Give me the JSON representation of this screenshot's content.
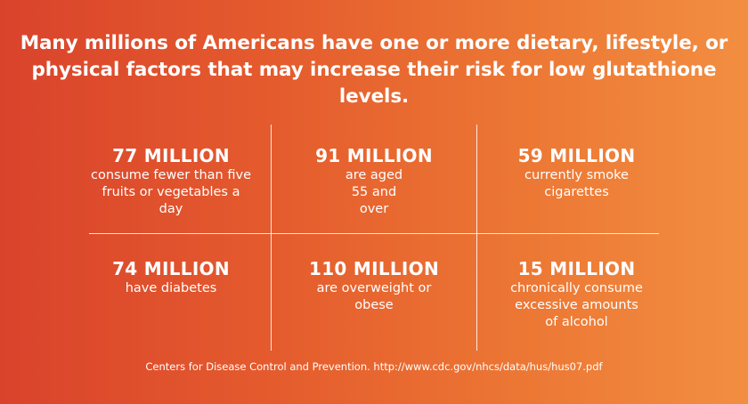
{
  "headline": "Many millions of Americans have one or more dietary, lifestyle, or physical factors that may increase their risk for low glutathione levels.",
  "stats": [
    {
      "value": "77 MILLION",
      "description": "consume fewer than five fruits or vegetables a day"
    },
    {
      "value": "91 MILLION",
      "description": "are aged 55 and over"
    },
    {
      "value": "59 MILLION",
      "description": "currently smoke cigarettes"
    },
    {
      "value": "74 MILLION",
      "description": "have diabetes"
    },
    {
      "value": "110 MILLION",
      "description": "are overweight or obese"
    },
    {
      "value": "15 MILLION",
      "description": "chronically consume excessive amounts of alcohol"
    }
  ],
  "source": "Centers for Disease Control and Prevention. http://www.cdc.gov/nhcs/data/hus/hus07.pdf",
  "colors": {
    "gradient_start": "#d9432c",
    "gradient_end": "#f28e41",
    "text": "#ffffff"
  }
}
